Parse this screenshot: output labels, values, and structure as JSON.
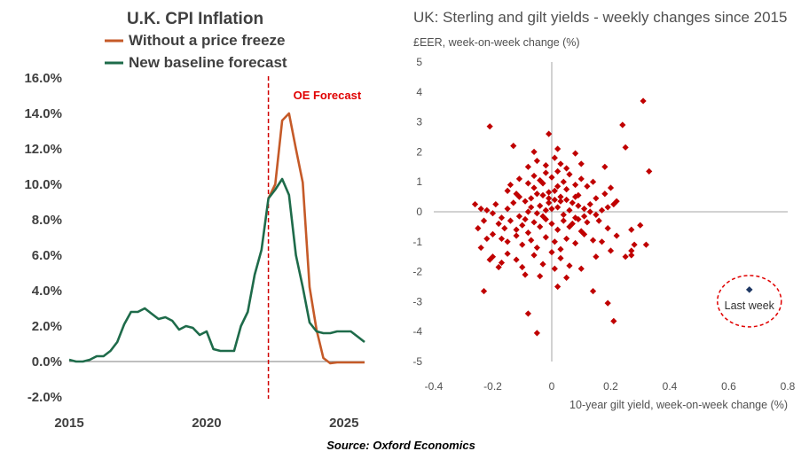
{
  "colors": {
    "orange": "#c55a28",
    "green": "#1e6b4a",
    "forecast_line": "#d00000",
    "scatter": "#c00000",
    "last_week": "#1f3864",
    "axis": "#7f7f7f",
    "text": "#404040"
  },
  "source": "Source: Oxford Economics",
  "chart_data": [
    {
      "type": "line",
      "title": "U.K. CPI Inflation",
      "xlabel": "",
      "ylabel": "",
      "xlim": [
        2015,
        2025.75
      ],
      "ylim": [
        -2,
        16
      ],
      "x_ticks": [
        {
          "v": 2015,
          "label": "2015"
        },
        {
          "v": 2020,
          "label": "2020"
        },
        {
          "v": 2025,
          "label": "2025"
        }
      ],
      "y_ticks": [
        {
          "v": 16,
          "label": "16.0%"
        },
        {
          "v": 14,
          "label": "14.0%"
        },
        {
          "v": 12,
          "label": "12.0%"
        },
        {
          "v": 10,
          "label": "10.0%"
        },
        {
          "v": 8,
          "label": "8.0%"
        },
        {
          "v": 6,
          "label": "6.0%"
        },
        {
          "v": 4,
          "label": "4.0%"
        },
        {
          "v": 2,
          "label": "2.0%"
        },
        {
          "v": 0,
          "label": "0.0%"
        },
        {
          "v": -2,
          "label": "-2.0%"
        }
      ],
      "annotation": {
        "x": 2022.25,
        "label": "OE Forecast"
      },
      "legend_position": "top",
      "series": [
        {
          "name": "Without a price freeze",
          "color": "#c55a28",
          "x": [
            2022.25,
            2022.5,
            2022.75,
            2023.0,
            2023.25,
            2023.5,
            2023.75,
            2024.0,
            2024.25,
            2024.5,
            2024.75,
            2025.0,
            2025.25,
            2025.5,
            2025.75
          ],
          "y": [
            9.2,
            10.0,
            13.6,
            14.0,
            12.0,
            10.1,
            4.2,
            1.8,
            0.2,
            -0.1,
            -0.05,
            -0.05,
            -0.05,
            -0.05,
            -0.05
          ]
        },
        {
          "name": "New baseline forecast",
          "color": "#1e6b4a",
          "x": [
            2015.0,
            2015.25,
            2015.5,
            2015.75,
            2016.0,
            2016.25,
            2016.5,
            2016.75,
            2017.0,
            2017.25,
            2017.5,
            2017.75,
            2018.0,
            2018.25,
            2018.5,
            2018.75,
            2019.0,
            2019.25,
            2019.5,
            2019.75,
            2020.0,
            2020.25,
            2020.5,
            2020.75,
            2021.0,
            2021.25,
            2021.5,
            2021.75,
            2022.0,
            2022.25,
            2022.5,
            2022.75,
            2023.0,
            2023.25,
            2023.5,
            2023.75,
            2024.0,
            2024.25,
            2024.5,
            2024.75,
            2025.0,
            2025.25,
            2025.5,
            2025.75
          ],
          "y": [
            0.1,
            0.0,
            0.0,
            0.1,
            0.3,
            0.3,
            0.6,
            1.1,
            2.1,
            2.8,
            2.8,
            3.0,
            2.7,
            2.4,
            2.5,
            2.3,
            1.8,
            2.0,
            1.9,
            1.5,
            1.7,
            0.7,
            0.6,
            0.6,
            0.6,
            2.0,
            2.8,
            4.9,
            6.3,
            9.2,
            9.7,
            10.3,
            9.4,
            6.0,
            4.2,
            2.2,
            1.7,
            1.6,
            1.6,
            1.7,
            1.7,
            1.7,
            1.4,
            1.1
          ]
        }
      ]
    },
    {
      "type": "scatter",
      "title": "UK: Sterling and gilt yields - weekly changes since 2015",
      "ylabel": "£EER, week-on-week change (%)",
      "xlabel": "10-year gilt yield, week-on-week change (%)",
      "xlim": [
        -0.4,
        0.8
      ],
      "ylim": [
        -5,
        5
      ],
      "x_ticks": [
        {
          "v": -0.4,
          "label": "-0.4"
        },
        {
          "v": -0.2,
          "label": "-0.2"
        },
        {
          "v": 0.0,
          "label": "0"
        },
        {
          "v": 0.2,
          "label": "0.2"
        },
        {
          "v": 0.4,
          "label": "0.4"
        },
        {
          "v": 0.6,
          "label": "0.6"
        },
        {
          "v": 0.8,
          "label": "0.8"
        }
      ],
      "y_ticks": [
        {
          "v": 5,
          "label": "5"
        },
        {
          "v": 4,
          "label": "4"
        },
        {
          "v": 3,
          "label": "3"
        },
        {
          "v": 2,
          "label": "2"
        },
        {
          "v": 1,
          "label": "1"
        },
        {
          "v": 0,
          "label": "0"
        },
        {
          "v": -1,
          "label": "-1"
        },
        {
          "v": -2,
          "label": "-2"
        },
        {
          "v": -3,
          "label": "-3"
        },
        {
          "v": -4,
          "label": "-4"
        },
        {
          "v": -5,
          "label": "-5"
        }
      ],
      "series": [
        {
          "name": "Weekly changes",
          "color": "#c00000",
          "points": [
            [
              -0.21,
              2.85
            ],
            [
              -0.13,
              2.2
            ],
            [
              -0.01,
              2.6
            ],
            [
              0.1,
              1.6
            ],
            [
              0.18,
              1.5
            ],
            [
              0.31,
              3.7
            ],
            [
              0.24,
              2.9
            ],
            [
              0.33,
              1.35
            ],
            [
              0.25,
              2.15
            ],
            [
              -0.26,
              0.25
            ],
            [
              -0.24,
              0.1
            ],
            [
              -0.22,
              0.05
            ],
            [
              -0.2,
              -0.05
            ],
            [
              -0.19,
              0.25
            ],
            [
              -0.17,
              -0.2
            ],
            [
              -0.15,
              0.1
            ],
            [
              -0.13,
              0.3
            ],
            [
              -0.11,
              0.5
            ],
            [
              -0.09,
              0.35
            ],
            [
              -0.07,
              0.45
            ],
            [
              -0.05,
              0.6
            ],
            [
              -0.03,
              0.55
            ],
            [
              -0.01,
              0.65
            ],
            [
              0.01,
              0.7
            ],
            [
              0.03,
              0.5
            ],
            [
              0.05,
              0.4
            ],
            [
              0.07,
              0.3
            ],
            [
              0.09,
              0.2
            ],
            [
              0.11,
              0.1
            ],
            [
              0.13,
              0.0
            ],
            [
              0.15,
              -0.1
            ],
            [
              0.17,
              0.05
            ],
            [
              0.19,
              0.15
            ],
            [
              0.21,
              0.25
            ],
            [
              -0.18,
              -0.4
            ],
            [
              -0.16,
              -0.55
            ],
            [
              -0.14,
              -0.3
            ],
            [
              -0.12,
              -0.6
            ],
            [
              -0.1,
              -0.45
            ],
            [
              -0.08,
              -0.7
            ],
            [
              -0.06,
              -0.35
            ],
            [
              -0.04,
              -0.5
            ],
            [
              -0.02,
              -0.25
            ],
            [
              0.0,
              -0.4
            ],
            [
              0.02,
              -0.6
            ],
            [
              0.04,
              -0.3
            ],
            [
              0.06,
              -0.5
            ],
            [
              0.08,
              -0.2
            ],
            [
              0.1,
              -0.65
            ],
            [
              0.12,
              -0.35
            ],
            [
              -0.2,
              -0.75
            ],
            [
              -0.17,
              -0.9
            ],
            [
              -0.15,
              -1.0
            ],
            [
              -0.12,
              -0.8
            ],
            [
              -0.1,
              -1.1
            ],
            [
              -0.07,
              -0.95
            ],
            [
              -0.05,
              -1.2
            ],
            [
              -0.02,
              -0.85
            ],
            [
              0.01,
              -1.0
            ],
            [
              0.03,
              -1.25
            ],
            [
              0.05,
              -0.9
            ],
            [
              0.08,
              -1.05
            ],
            [
              0.11,
              -0.75
            ],
            [
              0.14,
              -0.95
            ],
            [
              -0.2,
              -1.5
            ],
            [
              -0.17,
              -1.7
            ],
            [
              -0.15,
              -1.4
            ],
            [
              -0.12,
              -1.6
            ],
            [
              -0.1,
              -1.85
            ],
            [
              -0.06,
              -1.45
            ],
            [
              -0.03,
              -1.75
            ],
            [
              0.0,
              -1.35
            ],
            [
              0.03,
              -1.55
            ],
            [
              0.06,
              -1.8
            ],
            [
              -0.14,
              0.9
            ],
            [
              -0.11,
              1.1
            ],
            [
              -0.08,
              0.95
            ],
            [
              -0.06,
              1.2
            ],
            [
              -0.04,
              1.05
            ],
            [
              -0.02,
              1.3
            ],
            [
              0.0,
              1.15
            ],
            [
              0.02,
              1.35
            ],
            [
              0.04,
              1.0
            ],
            [
              0.06,
              1.25
            ],
            [
              0.08,
              0.9
            ],
            [
              0.1,
              1.1
            ],
            [
              0.12,
              0.85
            ],
            [
              0.14,
              1.0
            ],
            [
              -0.08,
              1.5
            ],
            [
              -0.05,
              1.7
            ],
            [
              -0.02,
              1.55
            ],
            [
              0.01,
              1.8
            ],
            [
              0.03,
              1.6
            ],
            [
              0.05,
              1.45
            ],
            [
              -0.06,
              2.0
            ],
            [
              0.02,
              2.1
            ],
            [
              0.08,
              1.95
            ],
            [
              -0.04,
              0.2
            ],
            [
              -0.01,
              0.3
            ],
            [
              0.02,
              0.15
            ],
            [
              0.04,
              -0.1
            ],
            [
              -0.08,
              0.0
            ],
            [
              -0.11,
              -0.15
            ],
            [
              0.06,
              0.05
            ],
            [
              0.09,
              -0.25
            ],
            [
              -0.05,
              -0.05
            ],
            [
              0.0,
              0.1
            ],
            [
              0.03,
              0.35
            ],
            [
              -0.03,
              -0.15
            ],
            [
              0.07,
              -0.4
            ],
            [
              0.15,
              0.45
            ],
            [
              0.18,
              0.6
            ],
            [
              0.2,
              0.8
            ],
            [
              0.22,
              0.35
            ],
            [
              0.16,
              -0.3
            ],
            [
              0.19,
              -0.55
            ],
            [
              0.22,
              -0.8
            ],
            [
              0.17,
              -1.0
            ],
            [
              0.2,
              -1.3
            ],
            [
              0.15,
              -1.5
            ],
            [
              -0.23,
              -0.3
            ],
            [
              -0.25,
              -0.55
            ],
            [
              -0.22,
              -0.9
            ],
            [
              -0.24,
              -1.2
            ],
            [
              -0.21,
              -1.6
            ],
            [
              -0.09,
              -0.25
            ],
            [
              -0.07,
              0.15
            ],
            [
              0.05,
              0.75
            ],
            [
              0.09,
              0.55
            ],
            [
              -0.01,
              0.45
            ],
            [
              -0.12,
              0.6
            ],
            [
              -0.15,
              0.7
            ],
            [
              0.13,
              0.25
            ],
            [
              0.11,
              -0.15
            ],
            [
              0.08,
              0.5
            ],
            [
              -0.06,
              0.8
            ],
            [
              -0.03,
              0.95
            ],
            [
              0.02,
              0.85
            ],
            [
              0.01,
              0.4
            ],
            [
              -0.02,
              0.05
            ],
            [
              0.27,
              -0.6
            ],
            [
              0.28,
              -1.1
            ],
            [
              0.25,
              -1.5
            ],
            [
              0.27,
              -1.45
            ],
            [
              0.32,
              -1.1
            ],
            [
              -0.23,
              -2.65
            ],
            [
              -0.18,
              -1.85
            ],
            [
              0.14,
              -2.65
            ],
            [
              0.19,
              -3.05
            ],
            [
              0.21,
              -3.65
            ],
            [
              -0.08,
              -3.4
            ],
            [
              -0.05,
              -4.05
            ],
            [
              -0.04,
              -2.15
            ],
            [
              0.01,
              -1.9
            ],
            [
              0.02,
              -2.5
            ],
            [
              -0.09,
              -2.1
            ],
            [
              0.1,
              -1.9
            ],
            [
              0.05,
              -2.2
            ],
            [
              0.27,
              -1.3
            ],
            [
              0.3,
              -0.45
            ]
          ]
        },
        {
          "name": "Last week",
          "color": "#1f3864",
          "label": "Last week",
          "points": [
            [
              0.67,
              -2.6
            ]
          ]
        }
      ]
    }
  ]
}
